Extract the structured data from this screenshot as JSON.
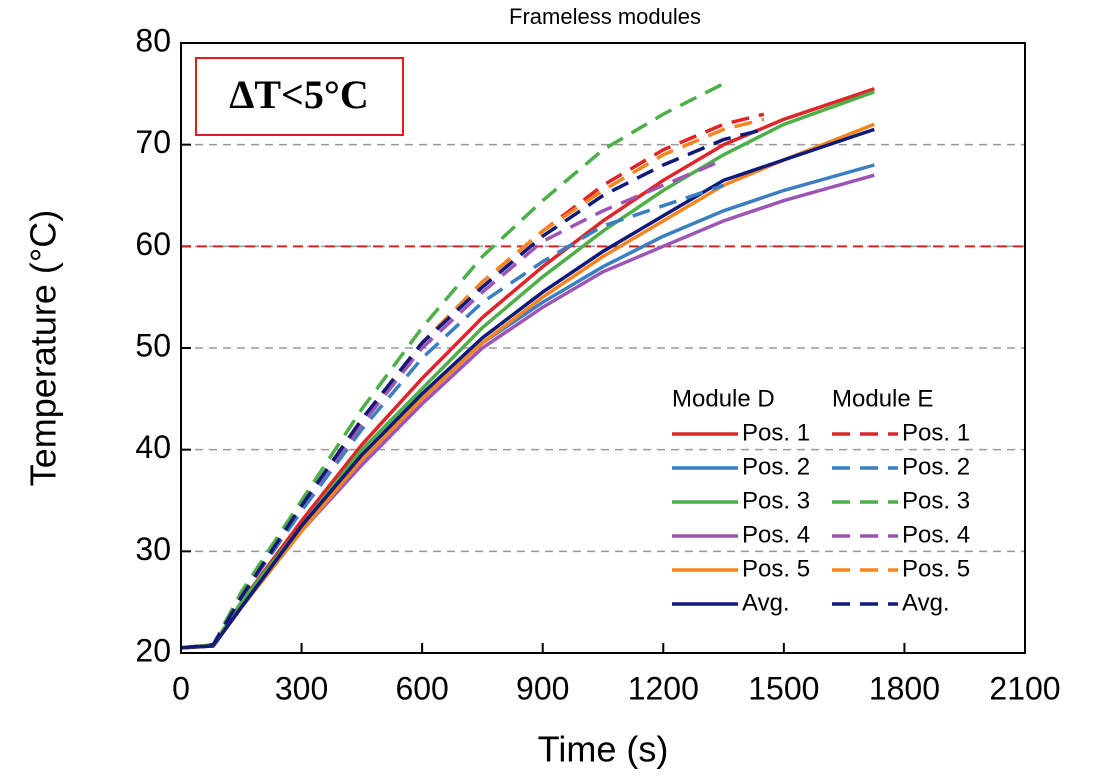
{
  "chart_data": {
    "type": "line",
    "title": "Frameless modules",
    "x_label": "Time (s)",
    "y_label": "Temperature (°C)",
    "annotation": "ΔT<5°C",
    "annotation_color": "#e01e1e",
    "xlim": [
      0,
      2100
    ],
    "xticks": [
      0,
      300,
      600,
      900,
      1200,
      1500,
      1800,
      2100
    ],
    "ylim": [
      20,
      80
    ],
    "yticks": [
      20,
      30,
      40,
      50,
      60,
      70,
      80
    ],
    "grid": true,
    "hline": {
      "value": 60,
      "color": "#e01e1e"
    },
    "series_groups": [
      {
        "name": "Module D",
        "dash": "solid",
        "x": [
          0,
          80,
          150,
          300,
          450,
          600,
          750,
          900,
          1050,
          1200,
          1350,
          1500,
          1725
        ],
        "series": [
          {
            "name": "Pos. 1",
            "color": "#e0242a",
            "values": [
              20.5,
              20.8,
              25,
              33,
              40.5,
              47,
              53,
              58,
              62.5,
              66.5,
              70,
              72.5,
              75.5
            ]
          },
          {
            "name": "Pos. 2",
            "color": "#3a7fc1",
            "values": [
              20.5,
              20.7,
              24.5,
              32,
              39,
              45,
              50.5,
              54.5,
              58,
              61,
              63.5,
              65.5,
              68
            ]
          },
          {
            "name": "Pos. 3",
            "color": "#4caf48",
            "values": [
              20.5,
              20.8,
              25,
              32.5,
              40,
              46,
              52,
              57,
              61.5,
              65.5,
              69,
              72,
              75.2
            ]
          },
          {
            "name": "Pos. 4",
            "color": "#9c55b5",
            "values": [
              20.5,
              20.7,
              24.5,
              32,
              38.5,
              44.5,
              50,
              54,
              57.5,
              60,
              62.5,
              64.5,
              67
            ]
          },
          {
            "name": "Pos. 5",
            "color": "#f7851f",
            "values": [
              20.5,
              20.7,
              24.5,
              32,
              39,
              45,
              50.5,
              55,
              59,
              62.5,
              66,
              68.5,
              72
            ]
          },
          {
            "name": "Avg.",
            "color": "#0e1a7a",
            "values": [
              20.5,
              20.7,
              24.5,
              32.5,
              39.5,
              45.5,
              51,
              55.5,
              59.5,
              63,
              66.5,
              68.5,
              71.5
            ]
          }
        ]
      },
      {
        "name": "Module E",
        "dash": "dashed",
        "x": [
          0,
          80,
          150,
          300,
          450,
          600,
          750,
          900,
          1050,
          1200,
          1350,
          1450
        ],
        "series": [
          {
            "name": "Pos. 1",
            "color": "#e0242a",
            "values": [
              20.5,
              20.8,
              25.5,
              34.5,
              43,
              50.5,
              56.5,
              61.5,
              66,
              69.5,
              72,
              73
            ]
          },
          {
            "name": "Pos. 2",
            "color": "#3a7fc1",
            "values": [
              20.5,
              20.8,
              25.5,
              34,
              42,
              49,
              54.5,
              58.5,
              62,
              64,
              66,
              null
            ]
          },
          {
            "name": "Pos. 3",
            "color": "#4caf48",
            "values": [
              20.5,
              20.8,
              26,
              35,
              44,
              52,
              59,
              64.5,
              69.5,
              73,
              76,
              null
            ]
          },
          {
            "name": "Pos. 4",
            "color": "#9c55b5",
            "values": [
              20.5,
              20.8,
              25.5,
              34.5,
              42.5,
              50,
              55.5,
              60.5,
              63.5,
              66,
              68.5,
              null
            ]
          },
          {
            "name": "Pos. 5",
            "color": "#f7851f",
            "values": [
              20.5,
              20.8,
              25.5,
              34.5,
              43,
              50.5,
              56.5,
              61.5,
              65.5,
              69,
              71.5,
              72.5
            ]
          },
          {
            "name": "Avg.",
            "color": "#0e1a7a",
            "values": [
              20.5,
              20.8,
              25.5,
              34.5,
              43,
              50.5,
              56,
              61,
              65,
              68,
              70.5,
              71.5
            ]
          }
        ]
      }
    ]
  }
}
